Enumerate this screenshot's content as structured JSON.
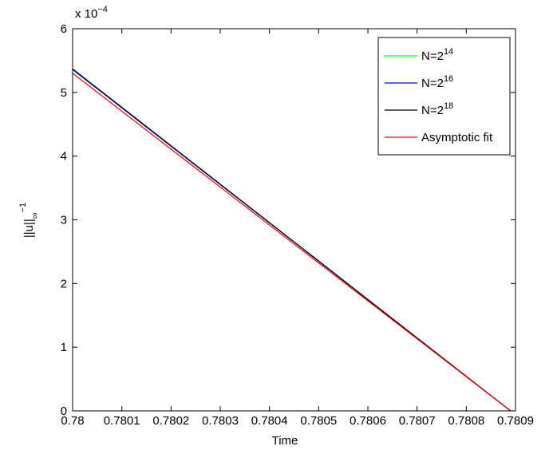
{
  "chart_data": {
    "type": "line",
    "xlabel": "Time",
    "ylabel": "||u||",
    "ylabel_sub": "∞",
    "ylabel_sup": "−1",
    "xlim": [
      0.78,
      0.7809
    ],
    "ylim": [
      0,
      6
    ],
    "y_exponent_label": "x 10",
    "y_exponent_power": "−4",
    "xticks": [
      0.78,
      0.7801,
      0.7802,
      0.7803,
      0.7804,
      0.7805,
      0.7806,
      0.7807,
      0.7808,
      0.7809
    ],
    "xtick_labels": [
      "0.78",
      "0.7801",
      "0.7802",
      "0.7803",
      "0.7804",
      "0.7805",
      "0.7806",
      "0.7807",
      "0.7808",
      "0.7809"
    ],
    "yticks": [
      0,
      1,
      2,
      3,
      4,
      5,
      6
    ],
    "ytick_labels": [
      "0",
      "1",
      "2",
      "3",
      "4",
      "5",
      "6"
    ],
    "grid": false,
    "legend_position": "top-right",
    "series": [
      {
        "name_base": "N=2",
        "name_sup": "14",
        "color": "#00ff00",
        "x": [
          0.78,
          0.78089
        ],
        "y": [
          5.36,
          0.0
        ]
      },
      {
        "name_base": "N=2",
        "name_sup": "16",
        "color": "#0000ff",
        "x": [
          0.78,
          0.78089
        ],
        "y": [
          5.36,
          0.0
        ]
      },
      {
        "name_base": "N=2",
        "name_sup": "18",
        "color": "#000000",
        "x": [
          0.78,
          0.78089
        ],
        "y": [
          5.37,
          0.0
        ]
      },
      {
        "name_base": "Asymptotic fit",
        "name_sup": "",
        "color": "#ff0000",
        "x": [
          0.78,
          0.78089
        ],
        "y": [
          5.3,
          0.0
        ]
      }
    ]
  }
}
